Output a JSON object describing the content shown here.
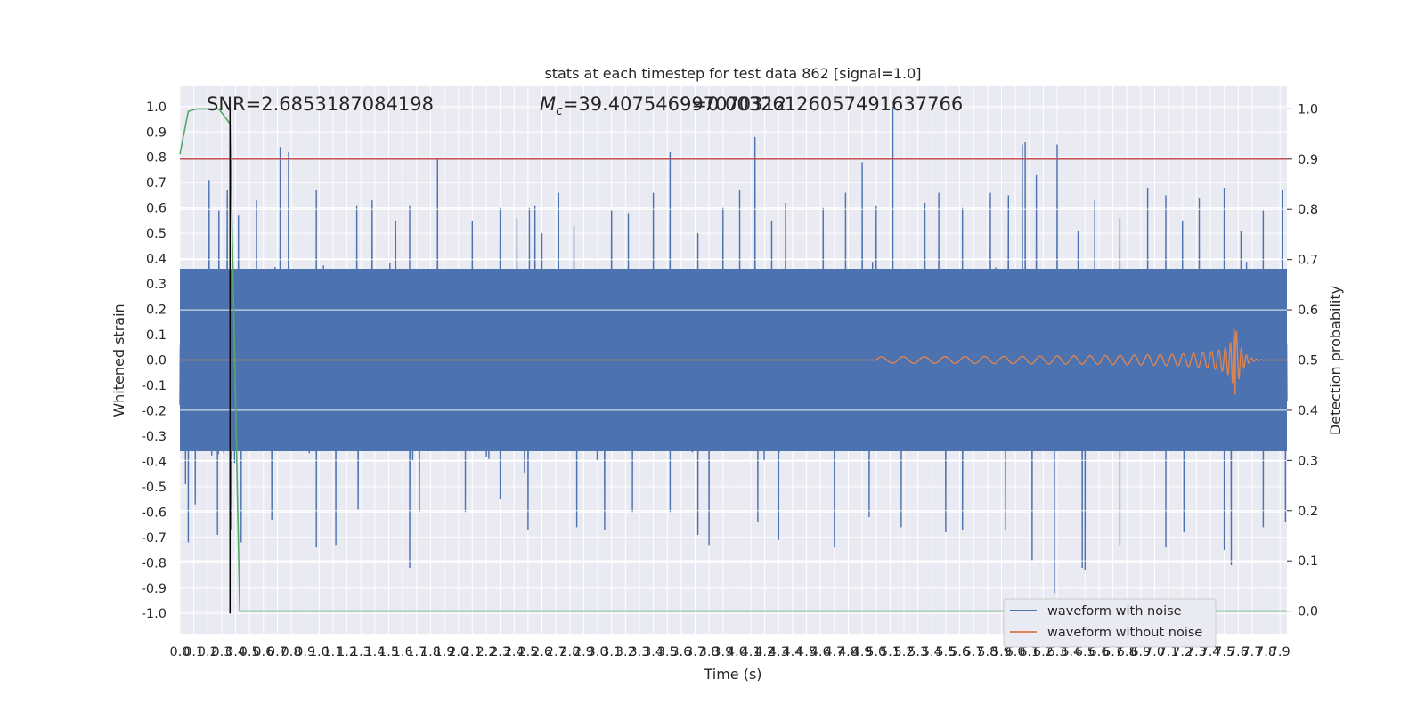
{
  "chart_data": {
    "type": "line",
    "title": "stats at each timestep for test data 862 [signal=1.0]",
    "xlabel": "Time (s)",
    "ylabel": "Whitened strain",
    "y2label": "Detection probability",
    "xlim": [
      0.0,
      7.95
    ],
    "ylim": [
      -1.08,
      1.08
    ],
    "y2lim": [
      -0.045,
      1.045
    ],
    "x_ticks": [
      "0.0",
      "0.1",
      "0.2",
      "0.3",
      "0.4",
      "0.5",
      "0.6",
      "0.7",
      "0.8",
      "0.9",
      "1.0",
      "1.1",
      "1.2",
      "1.3",
      "1.4",
      "1.5",
      "1.6",
      "1.7",
      "1.8",
      "1.9",
      "2.0",
      "2.1",
      "2.2",
      "2.3",
      "2.4",
      "2.5",
      "2.6",
      "2.7",
      "2.8",
      "2.9",
      "3.0",
      "3.1",
      "3.2",
      "3.3",
      "3.4",
      "3.5",
      "3.6",
      "3.7",
      "3.8",
      "3.9",
      "4.0",
      "4.1",
      "4.2",
      "4.3",
      "4.4",
      "4.5",
      "4.6",
      "4.7",
      "4.8",
      "4.9",
      "5.0",
      "5.1",
      "5.2",
      "5.3",
      "5.4",
      "5.5",
      "5.6",
      "5.7",
      "5.8",
      "5.9",
      "6.0",
      "6.1",
      "6.2",
      "6.3",
      "6.4",
      "6.5",
      "6.6",
      "6.7",
      "6.8",
      "6.9",
      "7.0",
      "7.1",
      "7.2",
      "7.3",
      "7.4",
      "7.5",
      "7.6",
      "7.7",
      "7.8",
      "7.9"
    ],
    "y_ticks": [
      "1.0",
      "0.9",
      "0.8",
      "0.7",
      "0.6",
      "0.5",
      "0.4",
      "0.3",
      "0.2",
      "0.1",
      "0.0",
      "-0.1",
      "-0.2",
      "-0.3",
      "-0.4",
      "-0.5",
      "-0.6",
      "-0.7",
      "-0.8",
      "-0.9",
      "-1.0"
    ],
    "y2_ticks": [
      "1.0",
      "0.9",
      "0.8",
      "0.7",
      "0.6",
      "0.5",
      "0.4",
      "0.3",
      "0.2",
      "0.1",
      "0.0"
    ],
    "annotations": {
      "snr": "SNR=2.6853187084198",
      "mc_prefix": "M",
      "mc_sub": "c",
      "mc_value": "=39.407546997070312",
      "overlap_text": "9=0.00326126057491637766"
    },
    "threshold": {
      "y2": 0.9,
      "color": "#c44e52"
    },
    "marker_x": 0.36,
    "series": [
      {
        "name": "waveform with noise",
        "color": "#4c72b0",
        "peaks_high": [
          [
            0.21,
            0.71
          ],
          [
            0.28,
            0.59
          ],
          [
            0.34,
            0.67
          ],
          [
            0.42,
            0.57
          ],
          [
            0.55,
            0.63
          ],
          [
            0.72,
            0.84
          ],
          [
            0.78,
            0.82
          ],
          [
            0.98,
            0.67
          ],
          [
            1.27,
            0.61
          ],
          [
            1.38,
            0.63
          ],
          [
            1.55,
            0.55
          ],
          [
            1.65,
            0.61
          ],
          [
            1.85,
            0.8
          ],
          [
            2.1,
            0.55
          ],
          [
            2.3,
            0.6
          ],
          [
            2.42,
            0.56
          ],
          [
            2.51,
            0.6
          ],
          [
            2.55,
            0.61
          ],
          [
            2.6,
            0.5
          ],
          [
            2.72,
            0.66
          ],
          [
            2.83,
            0.53
          ],
          [
            3.1,
            0.59
          ],
          [
            3.22,
            0.58
          ],
          [
            3.4,
            0.66
          ],
          [
            3.52,
            0.82
          ],
          [
            3.72,
            0.5
          ],
          [
            3.9,
            0.6
          ],
          [
            4.02,
            0.67
          ],
          [
            4.13,
            0.88
          ],
          [
            4.25,
            0.55
          ],
          [
            4.35,
            0.62
          ],
          [
            4.62,
            0.6
          ],
          [
            4.78,
            0.66
          ],
          [
            4.9,
            0.78
          ],
          [
            5.0,
            0.61
          ],
          [
            5.12,
            1.0
          ],
          [
            5.35,
            0.62
          ],
          [
            5.45,
            0.66
          ],
          [
            5.62,
            0.6
          ],
          [
            5.82,
            0.66
          ],
          [
            5.95,
            0.65
          ],
          [
            6.05,
            0.85
          ],
          [
            6.07,
            0.86
          ],
          [
            6.15,
            0.73
          ],
          [
            6.3,
            0.85
          ],
          [
            6.45,
            0.51
          ],
          [
            6.57,
            0.63
          ],
          [
            6.75,
            0.56
          ],
          [
            6.95,
            0.68
          ],
          [
            7.08,
            0.65
          ],
          [
            7.2,
            0.55
          ],
          [
            7.32,
            0.64
          ],
          [
            7.5,
            0.68
          ],
          [
            7.62,
            0.51
          ],
          [
            7.78,
            0.59
          ],
          [
            7.92,
            0.67
          ]
        ],
        "peaks_low": [
          [
            0.04,
            -0.49
          ],
          [
            0.06,
            -0.72
          ],
          [
            0.11,
            -0.57
          ],
          [
            0.27,
            -0.69
          ],
          [
            0.37,
            -0.67
          ],
          [
            0.44,
            -0.72
          ],
          [
            0.66,
            -0.63
          ],
          [
            0.98,
            -0.74
          ],
          [
            1.12,
            -0.73
          ],
          [
            1.28,
            -0.59
          ],
          [
            1.65,
            -0.82
          ],
          [
            1.72,
            -0.6
          ],
          [
            2.05,
            -0.6
          ],
          [
            2.3,
            -0.55
          ],
          [
            2.5,
            -0.67
          ],
          [
            2.85,
            -0.66
          ],
          [
            3.05,
            -0.67
          ],
          [
            3.25,
            -0.6
          ],
          [
            3.52,
            -0.6
          ],
          [
            3.72,
            -0.69
          ],
          [
            3.8,
            -0.73
          ],
          [
            4.15,
            -0.64
          ],
          [
            4.3,
            -0.71
          ],
          [
            4.7,
            -0.74
          ],
          [
            4.95,
            -0.62
          ],
          [
            5.18,
            -0.66
          ],
          [
            5.5,
            -0.68
          ],
          [
            5.62,
            -0.67
          ],
          [
            5.93,
            -0.67
          ],
          [
            6.12,
            -0.79
          ],
          [
            6.28,
            -0.92
          ],
          [
            6.48,
            -0.82
          ],
          [
            6.5,
            -0.83
          ],
          [
            6.75,
            -0.73
          ],
          [
            7.08,
            -0.74
          ],
          [
            7.21,
            -0.68
          ],
          [
            7.5,
            -0.75
          ],
          [
            7.55,
            -0.81
          ],
          [
            7.78,
            -0.66
          ],
          [
            7.94,
            -0.64
          ]
        ]
      },
      {
        "name": "waveform without noise",
        "color": "#dd8452",
        "chirp": {
          "start": 5.0,
          "merger": 7.58,
          "peak_amp": 0.14,
          "floor_amp": 0.005
        }
      },
      {
        "name": "Detection probability",
        "color": "#55a868",
        "axis": "y2",
        "x": [
          0.0,
          0.06,
          0.12,
          0.2,
          0.28,
          0.36,
          0.43,
          0.7,
          3.5,
          4.5,
          7.95
        ],
        "values": [
          0.91,
          0.995,
          1.0,
          1.0,
          1.0,
          0.97,
          0.0,
          0.0,
          0.0,
          0.0,
          0.0
        ]
      }
    ],
    "legend_position": "lower right",
    "grid": true
  }
}
